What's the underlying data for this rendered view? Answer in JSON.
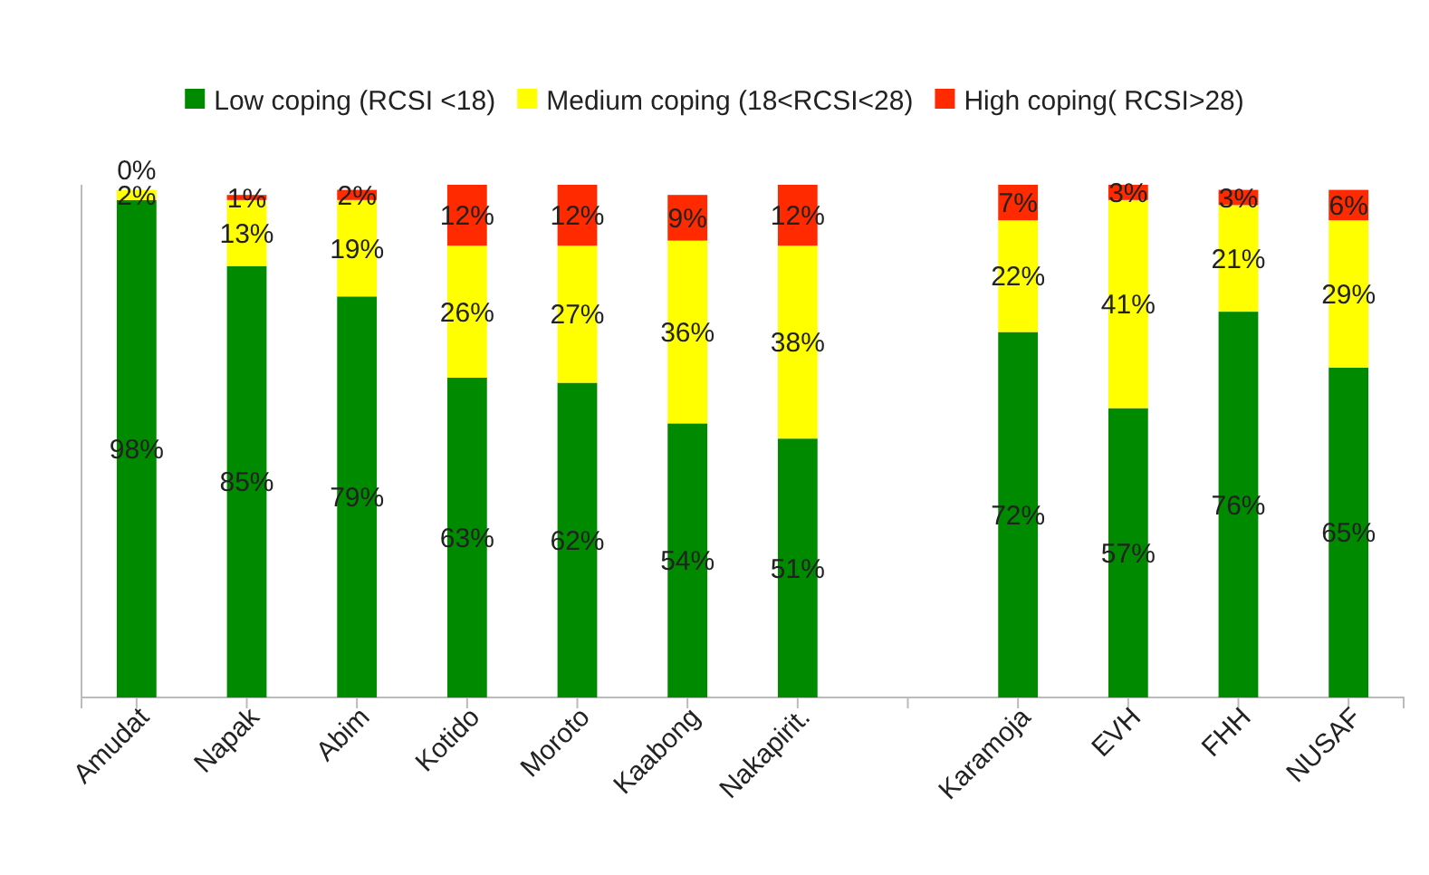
{
  "chart_data": {
    "type": "bar",
    "stacked": true,
    "legend": "top",
    "tick_labels": "x",
    "categories": [
      "Amudat",
      "Napak",
      "Abim",
      "Kotido",
      "Moroto",
      "Kaabong",
      "Nakapirit.",
      null,
      "Karamoja",
      "EVH",
      "FHH",
      "NUSAF"
    ],
    "series": [
      {
        "name": "Low coping (RCSI <18)",
        "color": "#008a00",
        "values": [
          98,
          85,
          79,
          63,
          62,
          54,
          51,
          null,
          72,
          57,
          76,
          65
        ],
        "value_labels": [
          "98%",
          "85%",
          "79%",
          "63%",
          "62%",
          "54%",
          "51%",
          null,
          "72%",
          "57%",
          "76%",
          "65%"
        ]
      },
      {
        "name": "Medium coping (18<RCSI<28)",
        "color": "#ffff00",
        "values": [
          2,
          13,
          19,
          26,
          27,
          36,
          38,
          null,
          22,
          41,
          21,
          29
        ],
        "value_labels": [
          "2%",
          "13%",
          "19%",
          "26%",
          "27%",
          "36%",
          "38%",
          null,
          "22%",
          "41%",
          "21%",
          "29%"
        ]
      },
      {
        "name": "High coping( RCSI>28)",
        "color": "#ff2a00",
        "values": [
          0,
          1,
          2,
          12,
          12,
          9,
          12,
          null,
          7,
          3,
          3,
          6
        ],
        "value_labels": [
          "0%",
          "1%",
          "2%",
          "12%",
          "12%",
          "9%",
          "12%",
          null,
          "7%",
          "3%",
          "3%",
          "6%"
        ]
      }
    ]
  }
}
